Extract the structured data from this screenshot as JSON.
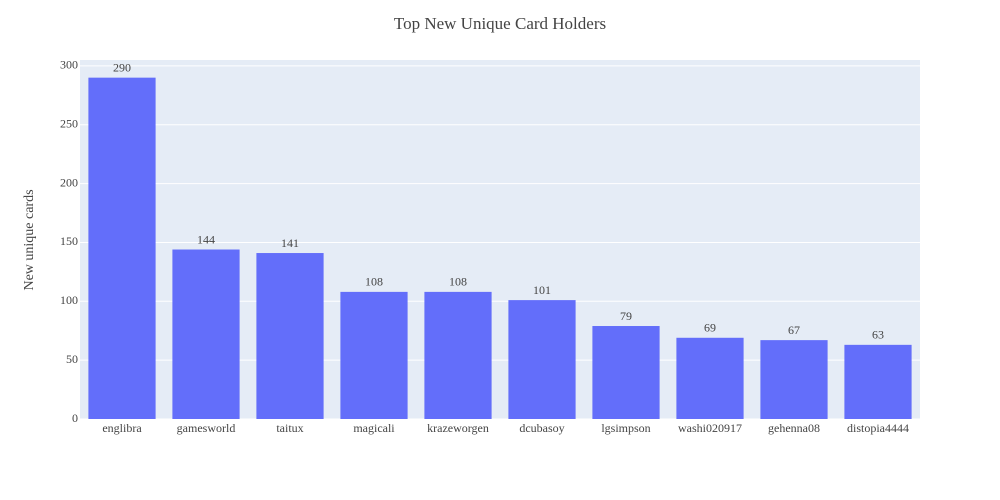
{
  "chart_data": {
    "type": "bar",
    "title": "Top New Unique Card Holders",
    "y_label": "New unique cards",
    "categories": [
      "englibra",
      "gamesworld",
      "taitux",
      "magicali",
      "krazeworgen",
      "dcubasoy",
      "lgsimpson",
      "washi020917",
      "gehenna08",
      "distopia4444"
    ],
    "values": [
      290,
      144,
      141,
      108,
      108,
      101,
      79,
      69,
      67,
      63
    ],
    "color": "#636efa",
    "ylim": [
      0,
      305
    ],
    "yticks": [
      0,
      50,
      100,
      150,
      200,
      250,
      300
    ],
    "grid": true,
    "data_labels": true
  }
}
